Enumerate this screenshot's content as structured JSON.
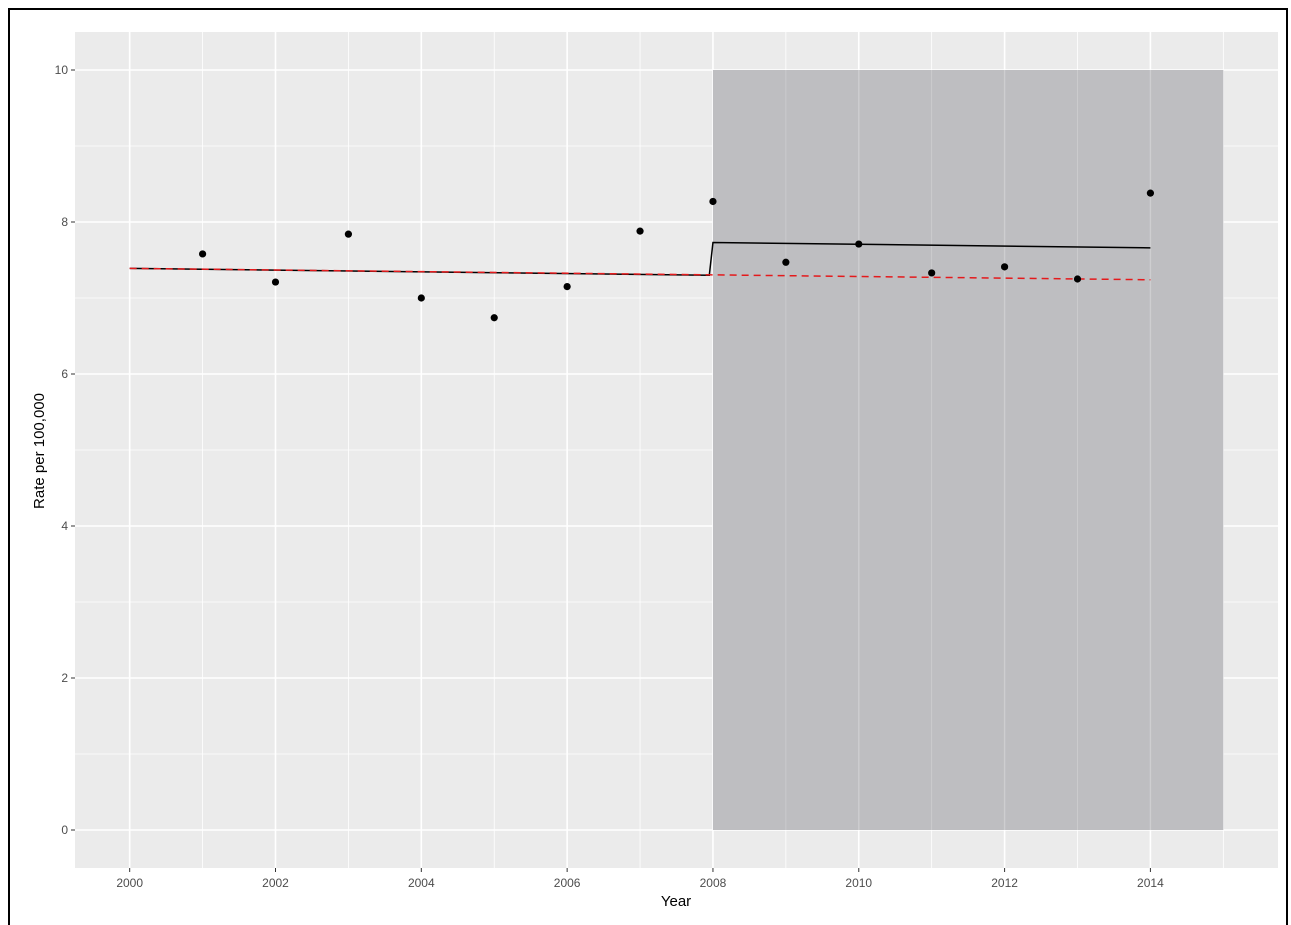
{
  "chart_data": {
    "type": "scatter",
    "xlabel": "Year",
    "ylabel": "Rate per 100,000",
    "xlim": [
      1999.25,
      2015.75
    ],
    "ylim": [
      -0.5,
      10.5
    ],
    "x_ticks": [
      2000,
      2002,
      2004,
      2006,
      2008,
      2010,
      2012,
      2014
    ],
    "x_tick_labels": [
      "2000",
      "2002",
      "2004",
      "2006",
      "2008",
      "2010",
      "2012",
      "2014"
    ],
    "y_ticks": [
      0,
      2,
      4,
      6,
      8,
      10
    ],
    "y_tick_labels": [
      "0",
      "2",
      "4",
      "6",
      "8",
      "10"
    ],
    "grid": true,
    "background": "#EBEBEB",
    "shaded_region": {
      "x": [
        2008,
        2015
      ],
      "y": [
        0,
        10
      ],
      "color": "#BEBEC1"
    },
    "points": {
      "x": [
        2001,
        2002,
        2003,
        2004,
        2005,
        2006,
        2007,
        2008,
        2009,
        2010,
        2011,
        2012,
        2013,
        2014
      ],
      "y": [
        7.58,
        7.21,
        7.84,
        7.0,
        6.74,
        7.15,
        7.88,
        8.27,
        7.47,
        7.71,
        7.33,
        7.41,
        7.25,
        8.38
      ],
      "color": "#000000"
    },
    "fitted_line": {
      "x": [
        2000,
        2007.95,
        2008,
        2014
      ],
      "y": [
        7.39,
        7.3,
        7.73,
        7.66
      ],
      "color": "#000000",
      "style": "solid"
    },
    "counterfactual_line": {
      "x": [
        2000,
        2014
      ],
      "y": [
        7.39,
        7.24
      ],
      "color": "#E41A1C",
      "style": "dashed"
    }
  }
}
